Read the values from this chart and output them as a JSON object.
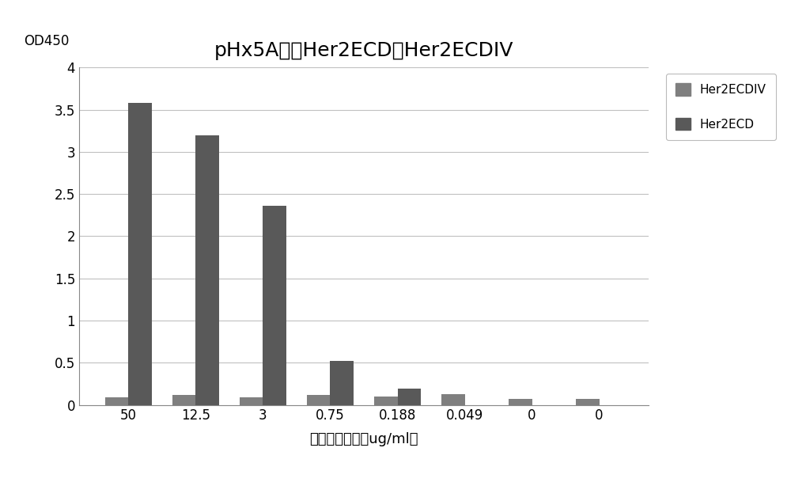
{
  "title": "pHx5A结合Her2ECD，Her2ECDIV",
  "ylabel": "OD450",
  "xlabel": "包被抗原浓度（ug/ml）",
  "categories": [
    "50",
    "12.5",
    "3",
    "0.75",
    "0.188",
    "0.049",
    "0",
    "0"
  ],
  "her2ecdiv_values": [
    0.09,
    0.12,
    0.09,
    0.12,
    0.1,
    0.13,
    0.07,
    0.07
  ],
  "her2ecd_values": [
    3.58,
    3.2,
    2.36,
    0.52,
    0.19,
    0.0,
    0.0,
    0.0
  ],
  "color_her2ecdiv": "#7f7f7f",
  "color_her2ecd": "#595959",
  "ylim": [
    0,
    4.0
  ],
  "yticks": [
    0,
    0.5,
    1.0,
    1.5,
    2.0,
    2.5,
    3.0,
    3.5,
    4.0
  ],
  "ytick_labels": [
    "0",
    "0.5",
    "1",
    "1.5",
    "2",
    "2.5",
    "3",
    "3.5",
    "4"
  ],
  "bar_width": 0.35,
  "legend_her2ecdiv": "Her2ECDIV",
  "legend_her2ecd": "Her2ECD",
  "background_color": "#ffffff",
  "grid_color": "#c0c0c0",
  "title_fontsize": 18,
  "od_label_fontsize": 12,
  "xlabel_fontsize": 13,
  "tick_fontsize": 12,
  "legend_fontsize": 11
}
